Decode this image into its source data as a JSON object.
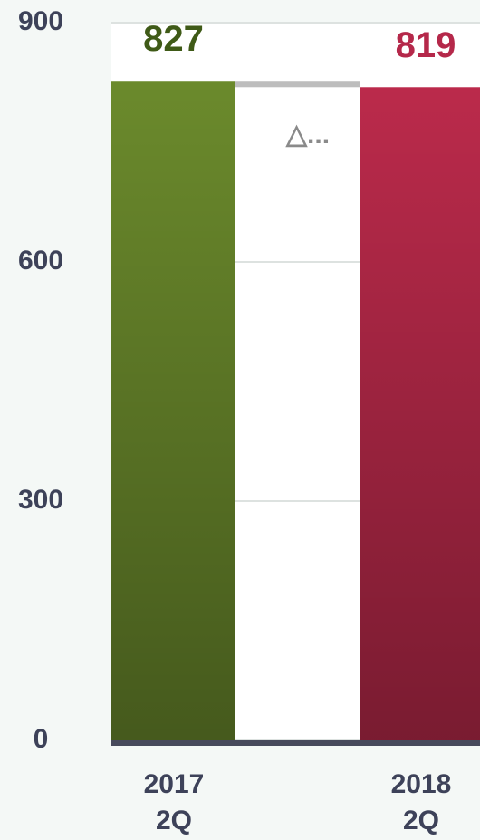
{
  "chart_data": {
    "type": "bar",
    "categories": [
      "2017\n2Q",
      "2018\n2Q"
    ],
    "values": [
      827,
      819
    ],
    "colors": [
      "#6b8a2c",
      "#bb2a4b"
    ],
    "value_label_colors": [
      "#3f5a17",
      "#b5284a"
    ],
    "annotation": "△...",
    "ylim": [
      0,
      900
    ],
    "yticks": [
      0,
      300,
      600,
      900
    ],
    "grid": true
  }
}
